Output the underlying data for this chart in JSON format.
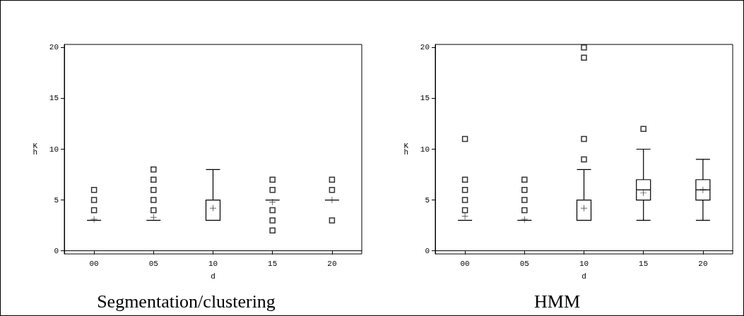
{
  "chart_data": [
    {
      "type": "box",
      "title": "Segmentation/clustering",
      "xlabel": "d",
      "ylabel": "Kh",
      "categories": [
        "00",
        "05",
        "10",
        "15",
        "20"
      ],
      "ylim": [
        -0.3,
        20.3
      ],
      "yticks": [
        0,
        5,
        10,
        15,
        20
      ],
      "marker": "square",
      "series": [
        {
          "color": "#000000",
          "boxes": [
            {
              "low": 3,
              "q1": 3,
              "median": 3,
              "q3": 3,
              "high": 3,
              "mean": 3.1,
              "outliers": [
                4,
                5,
                6
              ]
            },
            {
              "low": 3,
              "q1": 3,
              "median": 3,
              "q3": 3,
              "high": 3,
              "mean": 3.3,
              "outliers": [
                4,
                5,
                6,
                7,
                8
              ]
            },
            {
              "low": 3,
              "q1": 3,
              "median": 3,
              "q3": 5,
              "high": 8,
              "mean": 4.2
            },
            {
              "low": 5,
              "q1": 5,
              "median": 5,
              "q3": 5,
              "high": 5,
              "mean": 4.8,
              "outliers": [
                2,
                3,
                4,
                6,
                7
              ]
            },
            {
              "low": 5,
              "q1": 5,
              "median": 5,
              "q3": 5,
              "high": 5,
              "mean": 5,
              "outliers": [
                3,
                6,
                7
              ]
            }
          ]
        }
      ]
    },
    {
      "type": "box",
      "title": "HMM",
      "xlabel": "d",
      "ylabel": "Kh",
      "categories": [
        "00",
        "05",
        "10",
        "15",
        "20"
      ],
      "ylim": [
        -0.3,
        20.3
      ],
      "yticks": [
        0,
        5,
        10,
        15,
        20
      ],
      "marker": "square",
      "series": [
        {
          "color": "#000000",
          "boxes": [
            {
              "low": 3,
              "q1": 3,
              "median": 3,
              "q3": 3,
              "high": 3,
              "mean": 3.4,
              "outliers": [
                4,
                5,
                6,
                7,
                11
              ]
            },
            {
              "low": 3,
              "q1": 3,
              "median": 3,
              "q3": 3,
              "high": 3,
              "mean": 3.1,
              "outliers": [
                4,
                5,
                6,
                7
              ]
            },
            {
              "low": 3,
              "q1": 3,
              "median": 3,
              "q3": 5,
              "high": 8,
              "mean": 4.2,
              "outliers": [
                9,
                11,
                19,
                20
              ]
            },
            {
              "low": 3,
              "q1": 5,
              "median": 6,
              "q3": 7,
              "high": 10,
              "mean": 5.7,
              "outliers": [
                12
              ]
            },
            {
              "low": 3,
              "q1": 5,
              "median": 6,
              "q3": 7,
              "high": 9,
              "mean": 6
            }
          ]
        }
      ]
    }
  ]
}
